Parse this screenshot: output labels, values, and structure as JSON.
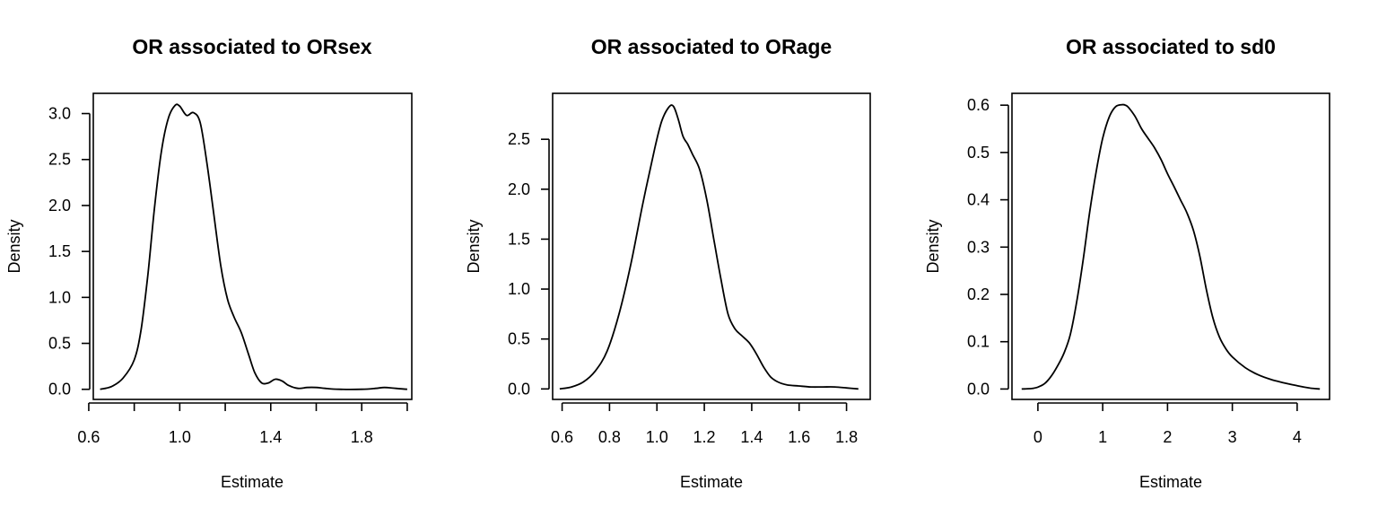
{
  "chart_data": [
    {
      "type": "line",
      "title": "OR associated to ORsex",
      "xlabel": "Estimate",
      "ylabel": "Density",
      "xlim": [
        0.62,
        2.02
      ],
      "ylim": [
        -0.11,
        3.22
      ],
      "xticks": [
        0.6,
        0.8,
        1.0,
        1.2,
        1.4,
        1.6,
        1.8,
        2.0
      ],
      "xtick_labels": [
        "0.6",
        "",
        "1.0",
        "",
        "1.4",
        "",
        "1.8",
        ""
      ],
      "yticks": [
        0.0,
        0.5,
        1.0,
        1.5,
        2.0,
        2.5,
        3.0
      ],
      "ytick_labels": [
        "0.0",
        "0.5",
        "1.0",
        "1.5",
        "2.0",
        "2.5",
        "3.0"
      ],
      "series": [
        {
          "x": [
            0.65,
            0.7,
            0.75,
            0.8,
            0.83,
            0.86,
            0.89,
            0.92,
            0.95,
            0.98,
            1.0,
            1.03,
            1.06,
            1.09,
            1.12,
            1.15,
            1.18,
            1.21,
            1.24,
            1.27,
            1.3,
            1.33,
            1.36,
            1.39,
            1.42,
            1.45,
            1.48,
            1.52,
            1.56,
            1.6,
            1.64,
            1.7,
            1.8,
            1.86,
            1.9,
            1.95,
            2.0
          ],
          "y": [
            0.0,
            0.03,
            0.12,
            0.32,
            0.65,
            1.25,
            2.0,
            2.6,
            2.95,
            3.09,
            3.08,
            2.98,
            3.01,
            2.9,
            2.45,
            1.9,
            1.35,
            0.98,
            0.78,
            0.62,
            0.4,
            0.18,
            0.07,
            0.07,
            0.11,
            0.09,
            0.04,
            0.01,
            0.02,
            0.02,
            0.01,
            0.0,
            0.0,
            0.01,
            0.02,
            0.01,
            0.0
          ]
        }
      ]
    },
    {
      "type": "line",
      "title": "OR associated to ORage",
      "xlabel": "Estimate",
      "ylabel": "Density",
      "xlim": [
        0.56,
        1.9
      ],
      "ylim": [
        -0.105,
        2.96
      ],
      "xticks": [
        0.6,
        0.8,
        1.0,
        1.2,
        1.4,
        1.6,
        1.8
      ],
      "xtick_labels": [
        "0.6",
        "0.8",
        "1.0",
        "1.2",
        "1.4",
        "1.6",
        "1.8"
      ],
      "yticks": [
        0.0,
        0.5,
        1.0,
        1.5,
        2.0,
        2.5
      ],
      "ytick_labels": [
        "0.0",
        "0.5",
        "1.0",
        "1.5",
        "2.0",
        "2.5"
      ],
      "series": [
        {
          "x": [
            0.59,
            0.64,
            0.69,
            0.74,
            0.79,
            0.84,
            0.89,
            0.94,
            0.99,
            1.02,
            1.05,
            1.07,
            1.09,
            1.11,
            1.13,
            1.15,
            1.18,
            1.21,
            1.24,
            1.27,
            1.3,
            1.33,
            1.36,
            1.39,
            1.42,
            1.45,
            1.48,
            1.51,
            1.55,
            1.6,
            1.65,
            1.7,
            1.75,
            1.8,
            1.85
          ],
          "y": [
            0.0,
            0.02,
            0.07,
            0.18,
            0.38,
            0.75,
            1.25,
            1.85,
            2.4,
            2.68,
            2.82,
            2.83,
            2.7,
            2.53,
            2.45,
            2.35,
            2.2,
            1.9,
            1.5,
            1.1,
            0.75,
            0.6,
            0.53,
            0.46,
            0.35,
            0.22,
            0.12,
            0.07,
            0.04,
            0.03,
            0.02,
            0.02,
            0.02,
            0.01,
            0.0
          ]
        }
      ]
    },
    {
      "type": "line",
      "title": "OR associated to sd0",
      "xlabel": "Estimate",
      "ylabel": "Density",
      "xlim": [
        -0.4,
        4.5
      ],
      "ylim": [
        -0.022,
        0.625
      ],
      "xticks": [
        0,
        1,
        2,
        3,
        4
      ],
      "xtick_labels": [
        "0",
        "1",
        "2",
        "3",
        "4"
      ],
      "yticks": [
        0.0,
        0.1,
        0.2,
        0.3,
        0.4,
        0.5,
        0.6
      ],
      "ytick_labels": [
        "0.0",
        "0.1",
        "0.2",
        "0.3",
        "0.4",
        "0.5",
        "0.6"
      ],
      "series": [
        {
          "x": [
            -0.25,
            -0.1,
            0.0,
            0.1,
            0.2,
            0.3,
            0.4,
            0.5,
            0.6,
            0.7,
            0.8,
            0.9,
            1.0,
            1.1,
            1.2,
            1.3,
            1.35,
            1.4,
            1.5,
            1.6,
            1.7,
            1.8,
            1.9,
            2.0,
            2.1,
            2.2,
            2.3,
            2.4,
            2.5,
            2.6,
            2.7,
            2.8,
            2.9,
            3.0,
            3.2,
            3.4,
            3.6,
            3.8,
            4.0,
            4.2,
            4.35
          ],
          "y": [
            0.0,
            0.001,
            0.004,
            0.011,
            0.026,
            0.048,
            0.075,
            0.115,
            0.185,
            0.275,
            0.375,
            0.46,
            0.53,
            0.575,
            0.597,
            0.601,
            0.6,
            0.595,
            0.576,
            0.55,
            0.53,
            0.51,
            0.485,
            0.455,
            0.428,
            0.4,
            0.372,
            0.335,
            0.28,
            0.21,
            0.15,
            0.11,
            0.085,
            0.068,
            0.045,
            0.03,
            0.02,
            0.013,
            0.007,
            0.002,
            0.0
          ]
        }
      ]
    }
  ]
}
